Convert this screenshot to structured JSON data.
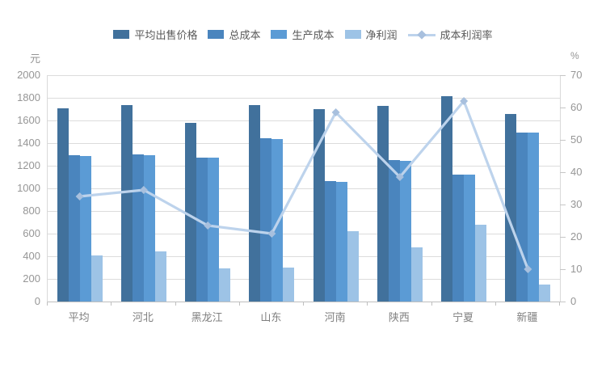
{
  "chart_data": {
    "type": "bar",
    "subtype": "grouped-bars-with-line-overlay",
    "title": "",
    "categories": [
      "平均",
      "河北",
      "黑龙江",
      "山东",
      "河南",
      "陕西",
      "宁夏",
      "新疆"
    ],
    "series": [
      {
        "name": "平均出售价格",
        "type": "bar",
        "axis": "left",
        "color": "#41719C",
        "values": [
          1710,
          1735,
          1580,
          1735,
          1700,
          1730,
          1815,
          1660
        ]
      },
      {
        "name": "总成本",
        "type": "bar",
        "axis": "left",
        "color": "#4A85BE",
        "values": [
          1290,
          1300,
          1275,
          1440,
          1065,
          1250,
          1125,
          1495
        ]
      },
      {
        "name": "生产成本",
        "type": "bar",
        "axis": "left",
        "color": "#5B9BD5",
        "values": [
          1285,
          1295,
          1270,
          1435,
          1060,
          1245,
          1120,
          1490
        ]
      },
      {
        "name": "净利润",
        "type": "bar",
        "axis": "left",
        "color": "#9DC3E6",
        "values": [
          410,
          440,
          295,
          300,
          620,
          480,
          680,
          150
        ]
      },
      {
        "name": "成本利润率",
        "type": "line",
        "axis": "right",
        "color": "#BDD3EC",
        "marker": "diamond",
        "marker_color": "#A8C0DE",
        "values": [
          32.5,
          34.5,
          23.5,
          21,
          58.5,
          38.5,
          62,
          10
        ]
      }
    ],
    "left_axis": {
      "title": "元",
      "min": 0,
      "max": 2000,
      "step": 200
    },
    "right_axis": {
      "title": "%",
      "min": 0,
      "max": 70,
      "step": 10
    },
    "legend_position": "top",
    "grid": true,
    "colors": {
      "gridline": "#DCDCDC",
      "axis_text": "#969696",
      "category_text": "#7F7F7F",
      "legend_text": "#595959"
    }
  }
}
